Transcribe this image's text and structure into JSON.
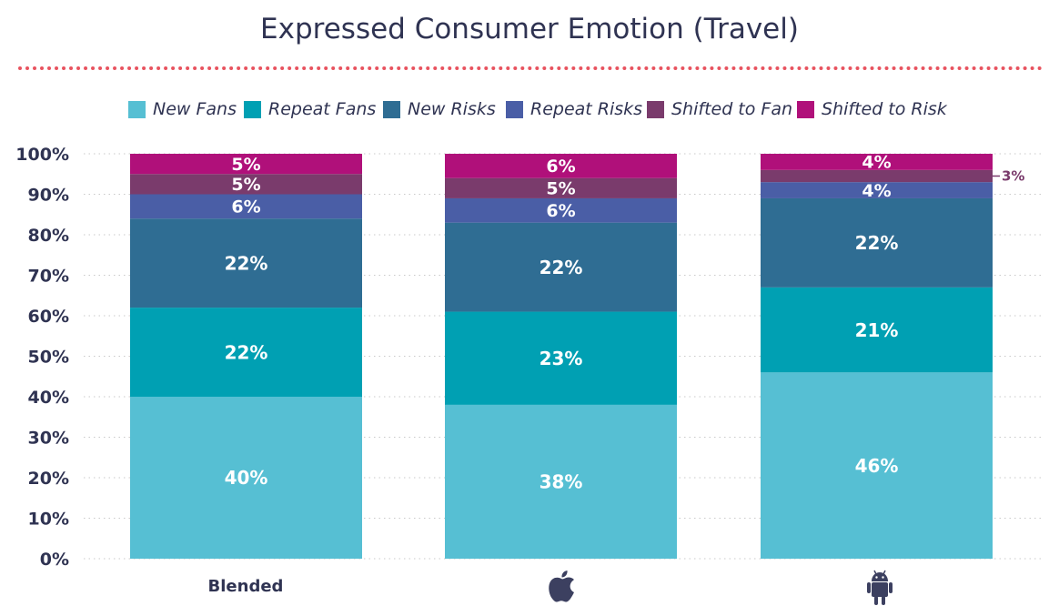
{
  "chart_data": {
    "type": "bar",
    "stacked": true,
    "title": "Expressed Consumer Emotion (Travel)",
    "categories": [
      "Blended",
      "",
      ""
    ],
    "category_icons": [
      "",
      "apple-icon",
      "android-icon"
    ],
    "ylim": [
      0,
      100
    ],
    "y_ticks": [
      "0%",
      "10%",
      "20%",
      "30%",
      "40%",
      "50%",
      "60%",
      "70%",
      "80%",
      "90%",
      "100%"
    ],
    "grid": true,
    "legend_position": "top",
    "series": [
      {
        "name": "New Fans",
        "color": "#56bfd3",
        "values": [
          40,
          38,
          46
        ],
        "labels": [
          "40%",
          "38%",
          "46%"
        ]
      },
      {
        "name": "Repeat Fans",
        "color": "#00a0b3",
        "values": [
          22,
          23,
          21
        ],
        "labels": [
          "22%",
          "23%",
          "21%"
        ]
      },
      {
        "name": "New Risks",
        "color": "#2f6d93",
        "values": [
          22,
          22,
          22
        ],
        "labels": [
          "22%",
          "22%",
          "22%"
        ]
      },
      {
        "name": "Repeat Risks",
        "color": "#4a5ea6",
        "values": [
          6,
          6,
          4
        ],
        "labels": [
          "6%",
          "6%",
          "4%"
        ]
      },
      {
        "name": "Shifted to Fan",
        "color": "#7a3b6c",
        "values": [
          5,
          5,
          3
        ],
        "labels": [
          "5%",
          "5%",
          "3%"
        ]
      },
      {
        "name": "Shifted to Risk",
        "color": "#b0107a",
        "values": [
          5,
          6,
          4
        ],
        "labels": [
          "5%",
          "6%",
          "4%"
        ]
      }
    ]
  }
}
